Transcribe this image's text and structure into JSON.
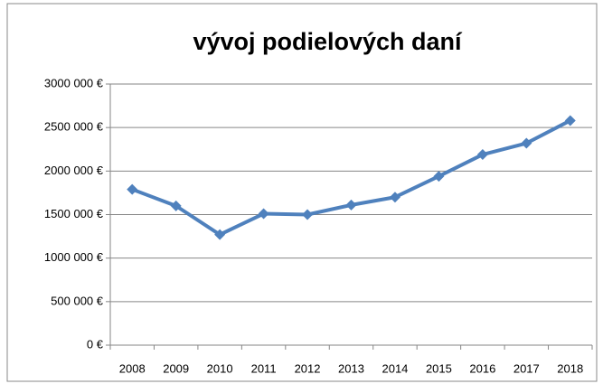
{
  "chart_data": {
    "type": "line",
    "title": "vývoj podielových daní",
    "categories": [
      "2008",
      "2009",
      "2010",
      "2011",
      "2012",
      "2013",
      "2014",
      "2015",
      "2016",
      "2017",
      "2018"
    ],
    "series": [
      {
        "name": "vývoj podielových daní",
        "color": "#4f81bd",
        "values": [
          1790000,
          1600000,
          1270000,
          1510000,
          1500000,
          1610000,
          1700000,
          1940000,
          2190000,
          2320000,
          2580000
        ]
      }
    ],
    "ylim": [
      0,
      3000000
    ],
    "yticks": [
      {
        "value": 0,
        "label": "0 €"
      },
      {
        "value": 500000,
        "label": "500 000 €"
      },
      {
        "value": 1000000,
        "label": "1000 000 €"
      },
      {
        "value": 1500000,
        "label": "1500 000 €"
      },
      {
        "value": 2000000,
        "label": "2000 000 €"
      },
      {
        "value": 2500000,
        "label": "2500 000 €"
      },
      {
        "value": 3000000,
        "label": "3000 000 €"
      }
    ],
    "grid": true
  }
}
